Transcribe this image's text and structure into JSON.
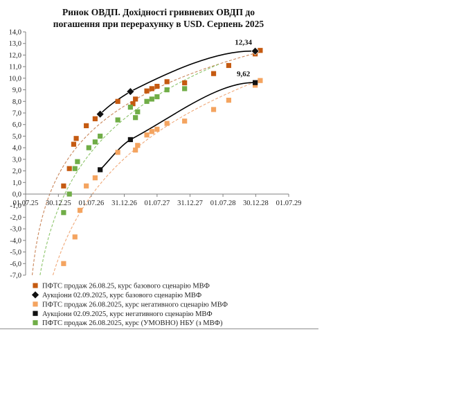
{
  "chart_data": {
    "type": "scatter",
    "title_line1": "Ринок ОВДП. Дохідності  гривневих ОВДП до",
    "title_line2": "погашення при перерахунку в USD. Серпень 2025",
    "xlabel": "",
    "ylabel": "",
    "x_axis": {
      "unit": "date",
      "min": "2025-07-01",
      "max": "2029-07-01",
      "tick_labels": [
        "01.07.25",
        "30.12.25",
        "01.07.26",
        "31.12.26",
        "01.07.27",
        "31.12.27",
        "01.07.28",
        "30.12.28",
        "01.07.29"
      ],
      "tick_dates": [
        "2025-07-01",
        "2025-12-30",
        "2026-07-01",
        "2026-12-31",
        "2027-07-01",
        "2027-12-31",
        "2028-07-01",
        "2028-12-30",
        "2029-07-01"
      ]
    },
    "y_axis": {
      "min": -7.0,
      "max": 14.0,
      "step": 1.0,
      "tick_labels": [
        "14,0",
        "13,0",
        "12,0",
        "11,0",
        "10,0",
        "9,0",
        "8,0",
        "7,0",
        "6,0",
        "5,0",
        "4,0",
        "3,0",
        "2,0",
        "1,0",
        "0,0",
        "-1,0",
        "-2,0",
        "-3,0",
        "-4,0",
        "-5,0",
        "-6,0",
        "-7,0"
      ]
    },
    "grid": false,
    "legend_position": "bottom",
    "series": [
      {
        "name": "ПФТС продаж 26.08.25, курс базового сценарію МВФ",
        "marker": "square",
        "color": "#C55A11",
        "trend_color": "#C9865A",
        "points": [
          {
            "x": "2026-01-28",
            "y": 0.7
          },
          {
            "x": "2026-03-01",
            "y": 2.2
          },
          {
            "x": "2026-03-25",
            "y": 4.3
          },
          {
            "x": "2026-04-08",
            "y": 4.8
          },
          {
            "x": "2026-06-03",
            "y": 5.9
          },
          {
            "x": "2026-07-22",
            "y": 6.5
          },
          {
            "x": "2026-11-25",
            "y": 8.0
          },
          {
            "x": "2027-02-17",
            "y": 7.8
          },
          {
            "x": "2027-03-03",
            "y": 8.2
          },
          {
            "x": "2027-05-05",
            "y": 8.9
          },
          {
            "x": "2027-06-02",
            "y": 9.1
          },
          {
            "x": "2027-07-01",
            "y": 9.3
          },
          {
            "x": "2027-08-25",
            "y": 9.7
          },
          {
            "x": "2027-12-01",
            "y": 9.6
          },
          {
            "x": "2028-05-10",
            "y": 10.4
          },
          {
            "x": "2028-08-02",
            "y": 11.1
          },
          {
            "x": "2028-12-27",
            "y": 12.1
          },
          {
            "x": "2029-01-24",
            "y": 12.4
          }
        ]
      },
      {
        "name": "Аукціони 02.09.2025,  курс базового сценарію МВФ",
        "marker": "diamond",
        "color": "#111111",
        "fit_color": "#000000",
        "points": [
          {
            "x": "2026-08-19",
            "y": 6.9
          },
          {
            "x": "2027-02-03",
            "y": 8.85
          },
          {
            "x": "2028-12-27",
            "y": 12.34
          }
        ],
        "value_label": "12,34"
      },
      {
        "name": "ПФТС продаж 26.08.2025, курс негативного сценарію МВФ",
        "marker": "square",
        "color": "#F4A460",
        "trend_color": "#F0A878",
        "points": [
          {
            "x": "2026-01-28",
            "y": -6.0
          },
          {
            "x": "2026-04-01",
            "y": -3.7
          },
          {
            "x": "2026-04-29",
            "y": -1.4
          },
          {
            "x": "2026-06-03",
            "y": 0.7
          },
          {
            "x": "2026-07-22",
            "y": 1.4
          },
          {
            "x": "2026-11-25",
            "y": 3.6
          },
          {
            "x": "2027-03-03",
            "y": 3.8
          },
          {
            "x": "2027-03-15",
            "y": 4.2
          },
          {
            "x": "2027-05-05",
            "y": 5.1
          },
          {
            "x": "2027-06-02",
            "y": 5.4
          },
          {
            "x": "2027-07-01",
            "y": 5.6
          },
          {
            "x": "2027-08-25",
            "y": 6.1
          },
          {
            "x": "2027-12-01",
            "y": 6.3
          },
          {
            "x": "2028-05-10",
            "y": 7.3
          },
          {
            "x": "2028-08-02",
            "y": 8.1
          },
          {
            "x": "2028-12-27",
            "y": 9.4
          },
          {
            "x": "2029-01-24",
            "y": 9.8
          }
        ]
      },
      {
        "name": "Аукціони 02.09.2025, курс негативного сценарію МВФ",
        "marker": "square",
        "color": "#111111",
        "fit_color": "#000000",
        "points": [
          {
            "x": "2026-08-19",
            "y": 2.1
          },
          {
            "x": "2027-02-03",
            "y": 4.7
          },
          {
            "x": "2028-12-27",
            "y": 9.62
          }
        ],
        "value_label": "9,62"
      },
      {
        "name": "ПФТС продаж 26.08.2025, курс (УМОВНО) НБУ (з МВФ)",
        "marker": "square",
        "color": "#70AD47",
        "trend_color": "#8CC46A",
        "points": [
          {
            "x": "2026-01-28",
            "y": -1.6
          },
          {
            "x": "2026-03-01",
            "y": 0.0
          },
          {
            "x": "2026-04-01",
            "y": 2.2
          },
          {
            "x": "2026-04-15",
            "y": 2.8
          },
          {
            "x": "2026-06-17",
            "y": 4.0
          },
          {
            "x": "2026-07-22",
            "y": 4.5
          },
          {
            "x": "2026-08-19",
            "y": 5.0
          },
          {
            "x": "2026-11-25",
            "y": 6.4
          },
          {
            "x": "2027-02-03",
            "y": 7.5
          },
          {
            "x": "2027-03-03",
            "y": 6.6
          },
          {
            "x": "2027-03-15",
            "y": 7.1
          },
          {
            "x": "2027-05-05",
            "y": 8.0
          },
          {
            "x": "2027-06-02",
            "y": 8.2
          },
          {
            "x": "2027-07-01",
            "y": 8.4
          },
          {
            "x": "2027-08-25",
            "y": 9.0
          },
          {
            "x": "2027-12-01",
            "y": 9.1
          }
        ]
      }
    ]
  }
}
